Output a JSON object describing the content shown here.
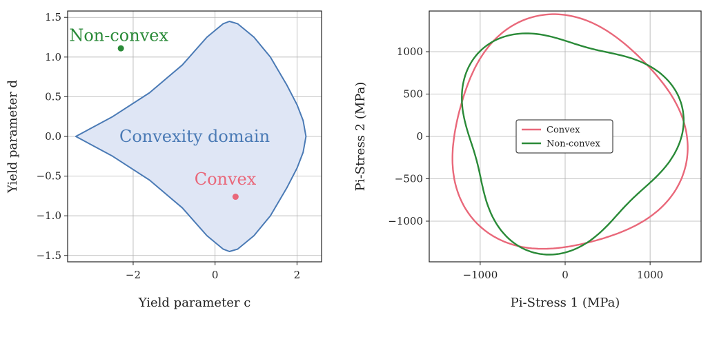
{
  "colors": {
    "domain_edge": "#4a7ab5",
    "domain_fill": "#dfe6f5",
    "convex": "#e9687a",
    "non_convex": "#2a8a38",
    "grid": "#b0b0b0",
    "axis": "#222222"
  },
  "chart_data": [
    {
      "type": "area",
      "xlabel": "Yield parameter c",
      "ylabel": "Yield parameter d",
      "xlim": [
        -3.6,
        2.6
      ],
      "ylim": [
        -1.58,
        1.58
      ],
      "xticks": [
        -2,
        0,
        2
      ],
      "xtick_labels": [
        "−2",
        "0",
        "2"
      ],
      "yticks": [
        -1.5,
        -1.0,
        -0.5,
        0.0,
        0.5,
        1.0,
        1.5
      ],
      "ytick_labels": [
        "−1.5",
        "−1.0",
        "−0.5",
        "0.0",
        "0.5",
        "1.0",
        "1.5"
      ],
      "grid": true,
      "domain_boundary": {
        "x": [
          -3.4,
          -2.5,
          -1.6,
          -0.8,
          -0.2,
          0.2,
          0.35,
          0.55,
          0.95,
          1.35,
          1.75,
          2.0,
          2.15,
          2.22,
          2.15,
          2.0,
          1.75,
          1.35,
          0.95,
          0.55,
          0.35,
          0.2,
          -0.2,
          -0.8,
          -1.6,
          -2.5,
          -3.4
        ],
        "y": [
          0.0,
          0.25,
          0.55,
          0.9,
          1.25,
          1.42,
          1.45,
          1.42,
          1.25,
          1.0,
          0.65,
          0.4,
          0.2,
          0.0,
          -0.2,
          -0.4,
          -0.65,
          -1.0,
          -1.25,
          -1.42,
          -1.45,
          -1.42,
          -1.25,
          -0.9,
          -0.55,
          -0.25,
          0.0
        ]
      },
      "region_label": "Convexity domain",
      "points": [
        {
          "name": "Non-convex",
          "x": -2.3,
          "y": 1.11
        },
        {
          "name": "Convex",
          "x": 0.5,
          "y": -0.76
        }
      ]
    },
    {
      "type": "line",
      "xlabel": "Pi-Stress 1 (MPa)",
      "ylabel": "Pi-Stress 2 (MPa)",
      "xlim": [
        -1600,
        1600
      ],
      "ylim": [
        -1480,
        1480
      ],
      "xticks": [
        -1000,
        0,
        1000
      ],
      "xtick_labels": [
        "−1000",
        "0",
        "1000"
      ],
      "yticks": [
        -1000,
        -500,
        0,
        500,
        1000
      ],
      "ytick_labels": [
        "−1000",
        "−500",
        "0",
        "500",
        "1000"
      ],
      "grid": true,
      "legend_position": "center",
      "series": [
        {
          "name": "Convex",
          "r0": 1370,
          "amp": 90,
          "k": 3,
          "phase_deg": 45,
          "x": [
            968,
            1181,
            1218,
            1143,
            993,
            686,
            271,
            -90,
            -543,
            -924,
            -1231,
            -1471,
            -1407,
            -1090,
            -679,
            -230,
            298,
            721,
            968
          ],
          "y": [
            968,
            682,
            213,
            -213,
            -623,
            -1188,
            -1536,
            -1291,
            -1234,
            -1102,
            -716,
            -258,
            248,
            586,
            1147,
            1307,
            1359,
            1242,
            968
          ]
        },
        {
          "name": "Non-convex",
          "r0": 1250,
          "amp": 170,
          "k": 3,
          "phase_deg": -45,
          "x": [
            1081,
            1400,
            1394,
            1046,
            676,
            357,
            -105,
            -572,
            -1082,
            -1105,
            -1092,
            -937,
            -568,
            -234,
            289,
            712,
            1081
          ],
          "y": [
            1081,
            594,
            -244,
            -584,
            -804,
            -1066,
            -1239,
            -1207,
            -1082,
            -498,
            0,
            524,
            1094,
            1315,
            1303,
            962,
            1081
          ]
        }
      ]
    }
  ]
}
